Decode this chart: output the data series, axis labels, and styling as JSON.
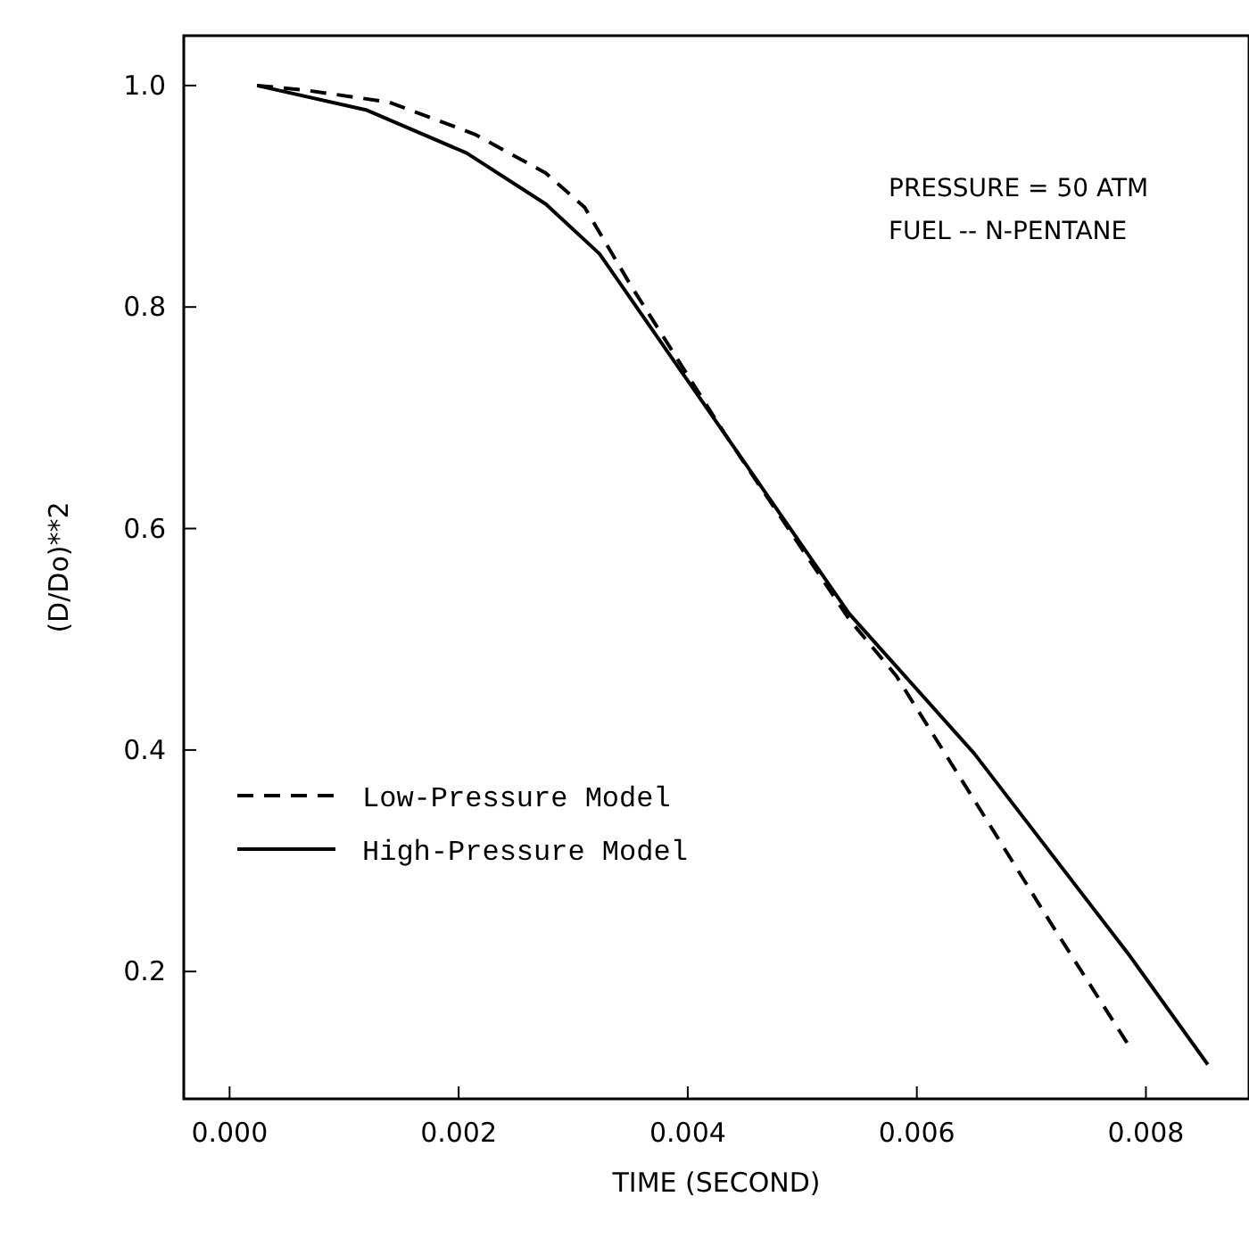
{
  "chart_data": {
    "type": "line",
    "xlabel": "TIME (SECOND)",
    "ylabel": "(D/Do)**2",
    "xlim": [
      -0.0004,
      0.0089
    ],
    "ylim": [
      0.085,
      1.045
    ],
    "xticks": [
      {
        "value": 0,
        "label": "0.000"
      },
      {
        "value": 0.002,
        "label": "0.002"
      },
      {
        "value": 0.004,
        "label": "0.004"
      },
      {
        "value": 0.006,
        "label": "0.006"
      },
      {
        "value": 0.008,
        "label": "0.008"
      }
    ],
    "yticks": [
      {
        "value": 0.2,
        "label": "0.2"
      },
      {
        "value": 0.4,
        "label": "0.4"
      },
      {
        "value": 0.6,
        "label": "0.6"
      },
      {
        "value": 0.8,
        "label": "0.8"
      },
      {
        "value": 1,
        "label": "1.0"
      }
    ],
    "grid": false,
    "legend": "bottom left",
    "annotations": [
      "PRESSURE = 50 ATM",
      "FUEL -- N-PENTANE"
    ],
    "series": [
      {
        "name": "Low-Pressure Model",
        "color": "#000000",
        "line_style": "dashed",
        "x": [
          0.00024,
          0.00065,
          0.00139,
          0.00214,
          0.00276,
          0.0031,
          0.0035,
          0.00432,
          0.00541,
          0.00582,
          0.0065,
          0.00718,
          0.00787
        ],
        "values": [
          1.0,
          0.996,
          0.985,
          0.956,
          0.921,
          0.89,
          0.82,
          0.686,
          0.518,
          0.467,
          0.355,
          0.242,
          0.13
        ]
      },
      {
        "name": "High-Pressure Model",
        "color": "#000000",
        "line_style": "solid",
        "x": [
          0.00024,
          0.00119,
          0.00207,
          0.00276,
          0.00323,
          0.00446,
          0.00541,
          0.0065,
          0.00786,
          0.00854
        ],
        "values": [
          1.0,
          0.978,
          0.939,
          0.893,
          0.848,
          0.665,
          0.523,
          0.397,
          0.214,
          0.116
        ]
      }
    ]
  }
}
